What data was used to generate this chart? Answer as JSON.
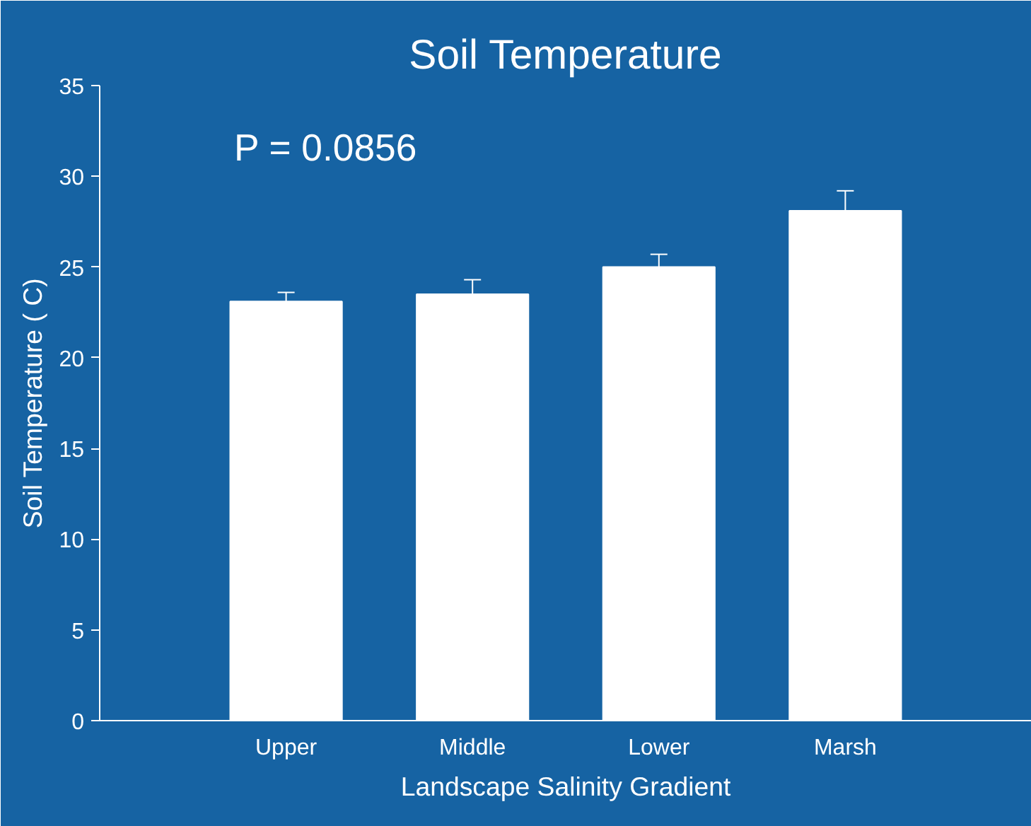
{
  "chart_data": {
    "type": "bar",
    "title": "Soil Temperature",
    "xlabel": "Landscape Salinity Gradient",
    "ylabel": "Soil Temperature ( C)",
    "categories": [
      "Upper",
      "Middle",
      "Lower",
      "Marsh"
    ],
    "values": [
      23.1,
      23.5,
      25.0,
      28.1
    ],
    "errors": [
      0.5,
      0.8,
      0.7,
      1.1
    ],
    "color": "#ffffff",
    "ylim": [
      0,
      35
    ],
    "yticks": [
      0,
      5,
      10,
      15,
      20,
      25,
      30,
      35
    ],
    "grid": false,
    "annotations": [
      "P = 0.0856"
    ]
  }
}
